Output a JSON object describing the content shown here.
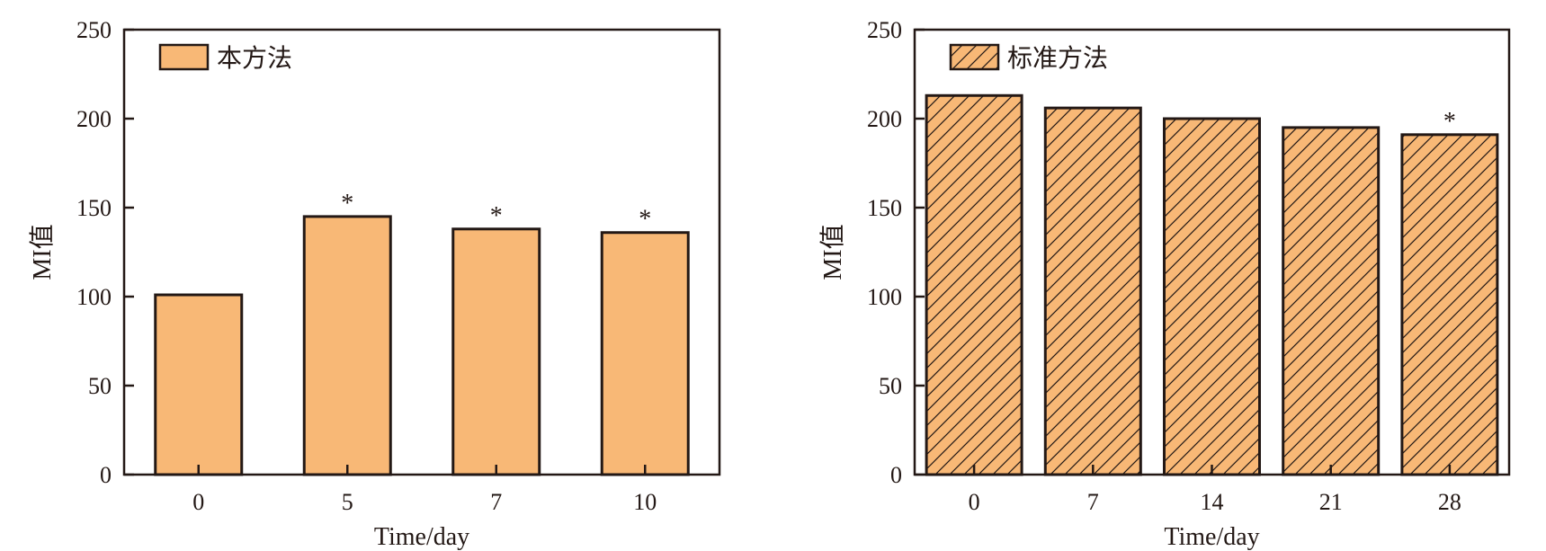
{
  "colors": {
    "bar": "#F8B876",
    "stroke": "#231815",
    "background": "#FFFFFF"
  },
  "chart_data": [
    {
      "type": "bar",
      "legend": {
        "label": "本方法",
        "position": "top-left",
        "hatch": false
      },
      "xlabel": "Time/day",
      "ylabel": "MI值",
      "ylim": [
        0,
        250
      ],
      "yticks": [
        0,
        50,
        100,
        150,
        200,
        250
      ],
      "categories": [
        "0",
        "5",
        "7",
        "10"
      ],
      "values": [
        101,
        145,
        138,
        136
      ],
      "annotations": [
        "",
        "*",
        "*",
        "*"
      ],
      "grid": false
    },
    {
      "type": "bar",
      "legend": {
        "label": "标准方法",
        "position": "top-left",
        "hatch": true
      },
      "xlabel": "Time/day",
      "ylabel": "MI值",
      "ylim": [
        0,
        250
      ],
      "yticks": [
        0,
        50,
        100,
        150,
        200,
        250
      ],
      "categories": [
        "0",
        "7",
        "14",
        "21",
        "28"
      ],
      "values": [
        213,
        206,
        200,
        195,
        191
      ],
      "annotations": [
        "",
        "",
        "",
        "",
        "*"
      ],
      "grid": false
    }
  ]
}
